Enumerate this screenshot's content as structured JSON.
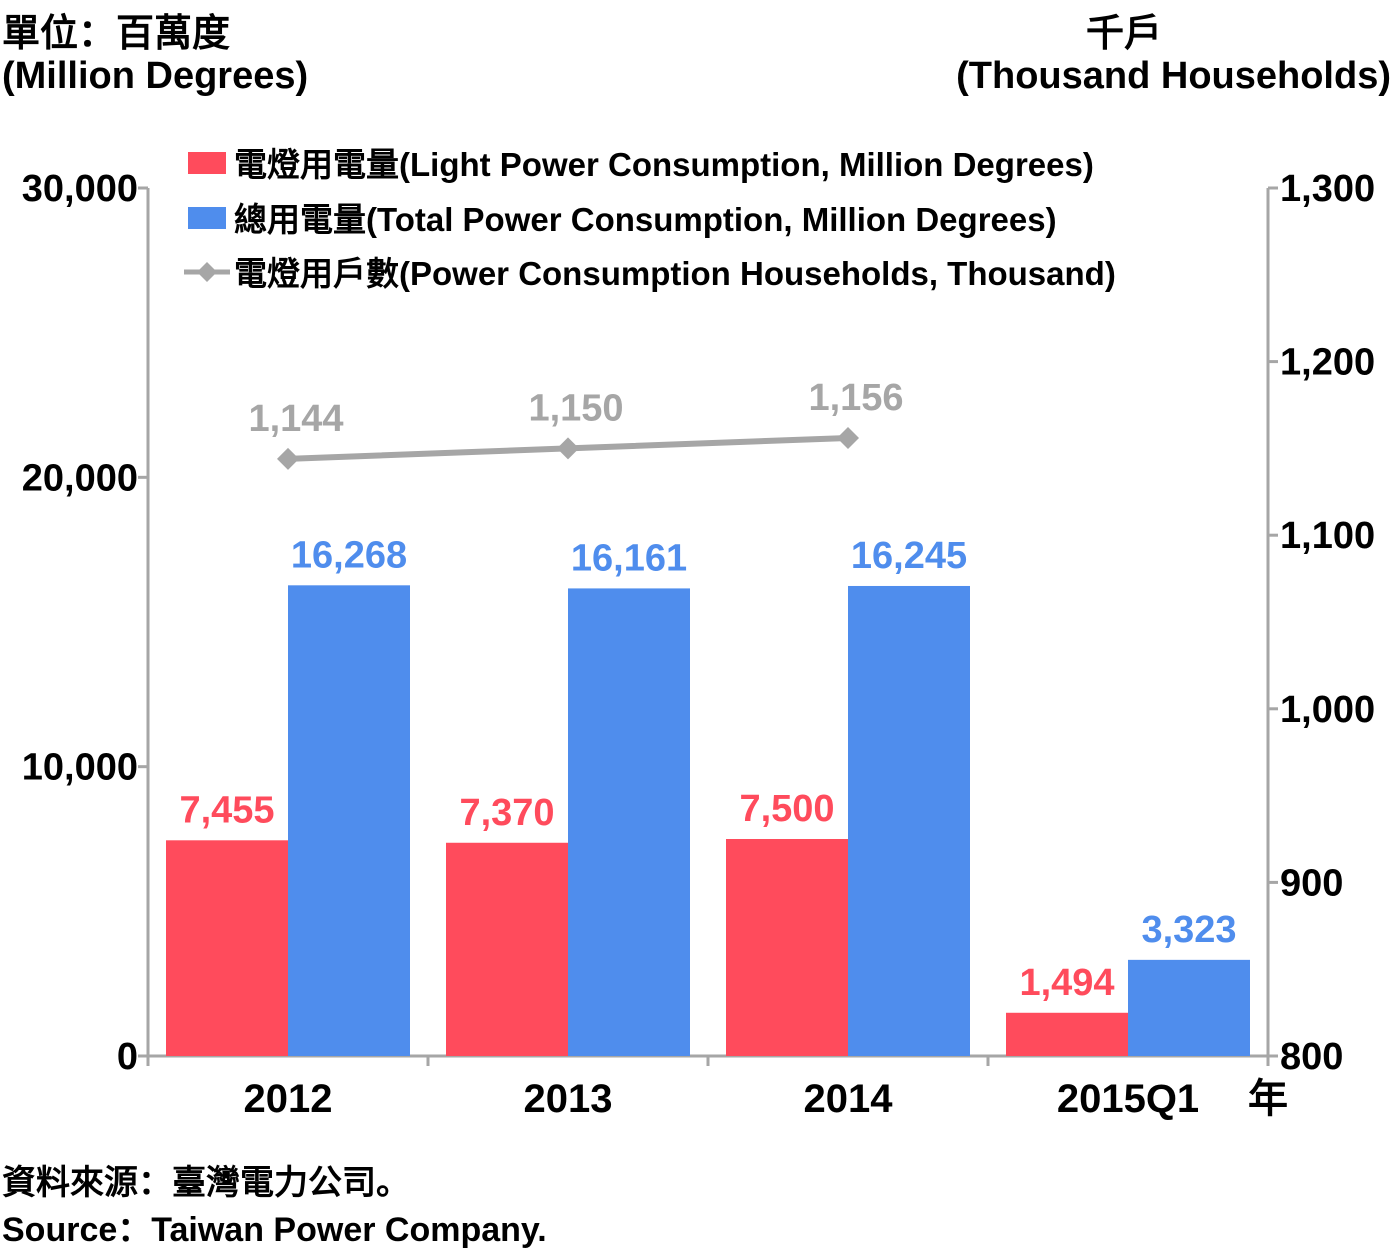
{
  "header": {
    "left_unit_zh": "單位：百萬度",
    "left_unit_en": "(Million Degrees)",
    "right_unit_zh": "千戶",
    "right_unit_en": "(Thousand Households)"
  },
  "footer": {
    "source_zh": "資料來源：臺灣電力公司。",
    "source_en": "Source：Taiwan Power Company."
  },
  "colors": {
    "light": "#ff4b5c",
    "total": "#4f8ded",
    "households": "#a6a6a6",
    "axis": "#a6a6a6"
  },
  "chart_data": {
    "type": "bar",
    "categories": [
      "2012",
      "2013",
      "2014",
      "2015Q1"
    ],
    "x_unit": "年",
    "series": [
      {
        "name": "電燈用電量(Light Power Consumption, Million Degrees)",
        "type": "bar",
        "axis": "left",
        "values": [
          7455,
          7370,
          7500,
          1494
        ]
      },
      {
        "name": "總用電量(Total Power Consumption, Million Degrees)",
        "type": "bar",
        "axis": "left",
        "values": [
          16268,
          16161,
          16245,
          3323
        ]
      },
      {
        "name": "電燈用戶數(Power Consumption Households, Thousand)",
        "type": "line",
        "axis": "right",
        "values": [
          1144,
          1150,
          1156,
          null
        ]
      }
    ],
    "y_left": {
      "ylim": [
        0,
        30000
      ],
      "ticks": [
        0,
        10000,
        20000,
        30000
      ],
      "tick_labels": [
        "0",
        "10,000",
        "20,000",
        "30,000"
      ]
    },
    "y_right": {
      "ylim": [
        800,
        1300
      ],
      "ticks": [
        800,
        900,
        1000,
        1100,
        1200,
        1300
      ],
      "tick_labels": [
        "800",
        "900",
        "1,000",
        "1,100",
        "1,200",
        "1,300"
      ]
    },
    "data_labels": {
      "light": [
        "7,455",
        "7,370",
        "7,500",
        "1,494"
      ],
      "total": [
        "16,268",
        "16,161",
        "16,245",
        "3,323"
      ],
      "households": [
        "1,144",
        "1,150",
        "1,156"
      ]
    },
    "legend_position": "top",
    "grid": false
  }
}
